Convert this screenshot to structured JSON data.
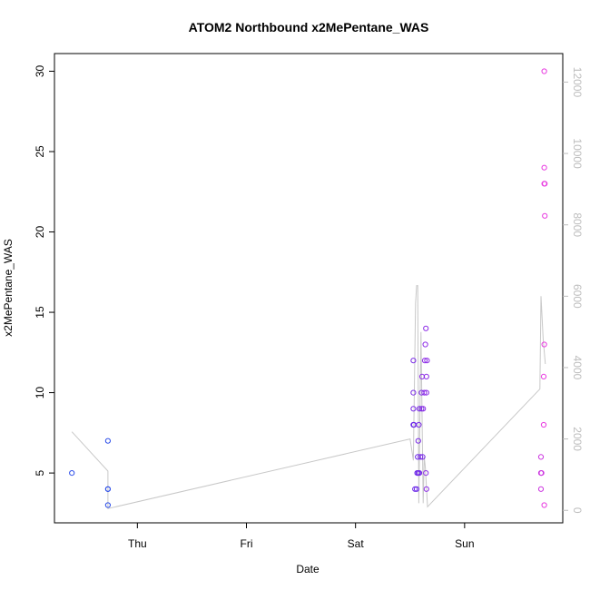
{
  "chart_data": {
    "type": "scatter",
    "title": "ATOM2 Northbound x2MePentane_WAS",
    "xlabel": "Date",
    "ylabel": "x2MePentane_WAS",
    "x_ticks": [
      "Thu",
      "Fri",
      "Sat",
      "Sun"
    ],
    "y_ticks": [
      "5",
      "10",
      "15",
      "20",
      "25",
      "30"
    ],
    "y2_ticks": [
      "0",
      "2000",
      "4000",
      "6000",
      "8000",
      "10000",
      "12000"
    ],
    "x_unit": "days",
    "x_tick_positions": [
      0,
      1,
      2,
      3
    ],
    "xlim": [
      -0.76,
      3.9
    ],
    "ylim": [
      1.9,
      31.1
    ],
    "y2lim": [
      -350,
      12800
    ],
    "grid": false,
    "points": [
      {
        "x": -0.6,
        "y": 5,
        "c": "#2b4de9"
      },
      {
        "x": -0.27,
        "y": 7,
        "c": "#2b4de9"
      },
      {
        "x": -0.27,
        "y": 4,
        "c": "#2b4de9"
      },
      {
        "x": -0.27,
        "y": 4,
        "c": "#2b4de9"
      },
      {
        "x": -0.27,
        "y": 3,
        "c": "#2b4de9"
      },
      {
        "x": 2.53,
        "y": 12,
        "c": "#7a2be6"
      },
      {
        "x": 2.53,
        "y": 10,
        "c": "#7a2be6"
      },
      {
        "x": 2.53,
        "y": 9,
        "c": "#7a2be6"
      },
      {
        "x": 2.53,
        "y": 8,
        "c": "#6a25e8"
      },
      {
        "x": 2.535,
        "y": 8,
        "c": "#6a25e8"
      },
      {
        "x": 2.545,
        "y": 4,
        "c": "#6a25e8"
      },
      {
        "x": 2.56,
        "y": 4,
        "c": "#6a25e8"
      },
      {
        "x": 2.565,
        "y": 5,
        "c": "#6a25e8"
      },
      {
        "x": 2.575,
        "y": 5,
        "c": "#6a25e8"
      },
      {
        "x": 2.57,
        "y": 6,
        "c": "#6a25e8"
      },
      {
        "x": 2.575,
        "y": 7,
        "c": "#7a2be6"
      },
      {
        "x": 2.58,
        "y": 8,
        "c": "#7a2be6"
      },
      {
        "x": 2.585,
        "y": 9,
        "c": "#7a2be6"
      },
      {
        "x": 2.585,
        "y": 5,
        "c": "#7a2be6"
      },
      {
        "x": 2.595,
        "y": 6,
        "c": "#7a2be6"
      },
      {
        "x": 2.605,
        "y": 9,
        "c": "#7a2be6"
      },
      {
        "x": 2.605,
        "y": 10,
        "c": "#7a2be6"
      },
      {
        "x": 2.61,
        "y": 11,
        "c": "#8d2de6"
      },
      {
        "x": 2.615,
        "y": 6,
        "c": "#7a2be6"
      },
      {
        "x": 2.62,
        "y": 9,
        "c": "#8d2de6"
      },
      {
        "x": 2.63,
        "y": 10,
        "c": "#8d2de6"
      },
      {
        "x": 2.635,
        "y": 12,
        "c": "#8d2de6"
      },
      {
        "x": 2.645,
        "y": 14,
        "c": "#8d2de6"
      },
      {
        "x": 2.64,
        "y": 13,
        "c": "#8d2de6"
      },
      {
        "x": 2.65,
        "y": 11,
        "c": "#8d2de6"
      },
      {
        "x": 2.65,
        "y": 10,
        "c": "#8d2de6"
      },
      {
        "x": 2.655,
        "y": 12,
        "c": "#8d2de6"
      },
      {
        "x": 2.645,
        "y": 5,
        "c": "#8d2de6"
      },
      {
        "x": 2.65,
        "y": 4,
        "c": "#8d2de6"
      },
      {
        "x": 3.7,
        "y": 6,
        "c": "#cc35e0"
      },
      {
        "x": 3.7,
        "y": 5,
        "c": "#cc35e0"
      },
      {
        "x": 3.705,
        "y": 5,
        "c": "#cc35e0"
      },
      {
        "x": 3.7,
        "y": 4,
        "c": "#cc35e0"
      },
      {
        "x": 3.73,
        "y": 30,
        "c": "#e83ae0"
      },
      {
        "x": 3.73,
        "y": 24,
        "c": "#e83ae0"
      },
      {
        "x": 3.735,
        "y": 23,
        "c": "#e83ae0"
      },
      {
        "x": 3.73,
        "y": 23,
        "c": "#e83ae0"
      },
      {
        "x": 3.735,
        "y": 21,
        "c": "#e83ae0"
      },
      {
        "x": 3.73,
        "y": 13,
        "c": "#e83ae0"
      },
      {
        "x": 3.725,
        "y": 11,
        "c": "#e83ae0"
      },
      {
        "x": 3.725,
        "y": 8,
        "c": "#e83ae0"
      },
      {
        "x": 3.73,
        "y": 3,
        "c": "#e83ae0"
      }
    ],
    "secondary_line": {
      "axis": "y2",
      "color": "#c8c8c8",
      "x": [
        -0.6,
        -0.27,
        -0.27,
        2.5,
        2.53,
        2.55,
        2.56,
        2.57,
        2.58,
        2.6,
        2.62,
        2.63,
        2.64,
        2.66,
        3.69,
        3.7,
        3.72,
        3.74
      ],
      "y": [
        2200,
        1100,
        50,
        2000,
        1400,
        5800,
        6300,
        6300,
        200,
        5000,
        200,
        1500,
        1200,
        100,
        3400,
        6000,
        4800,
        4100
      ]
    }
  }
}
